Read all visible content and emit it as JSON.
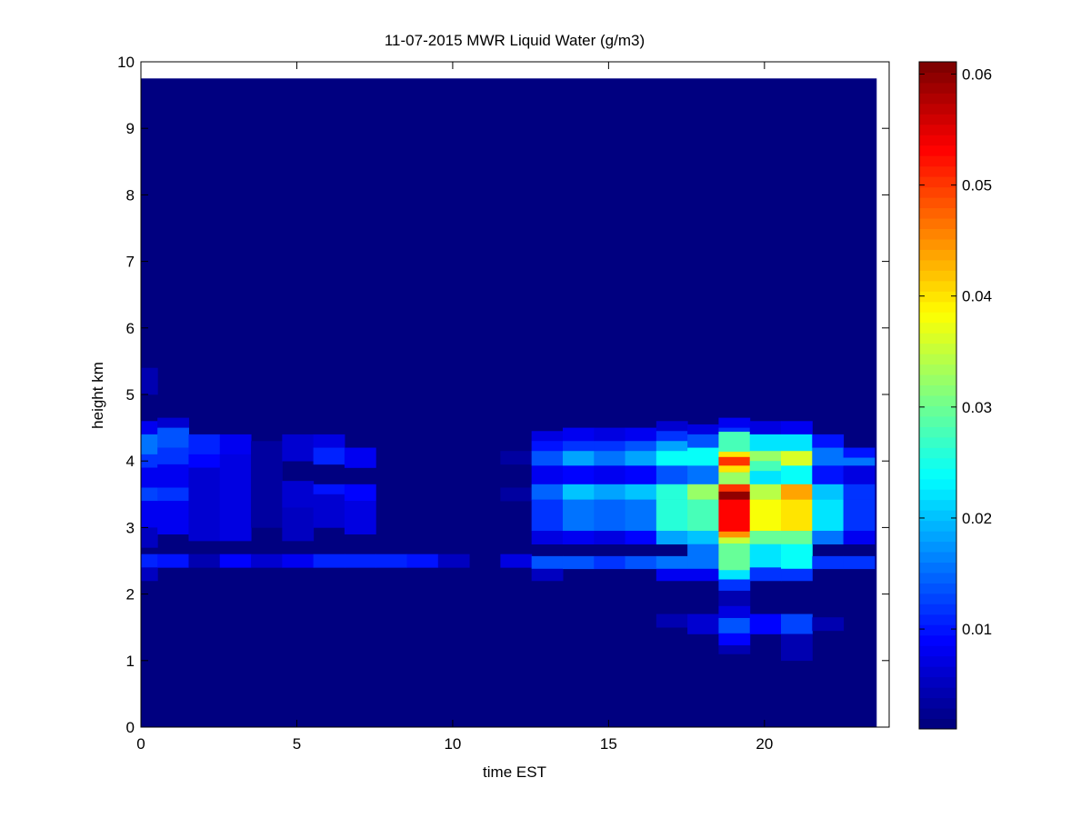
{
  "chart_data": {
    "type": "heatmap",
    "title": "11-07-2015 MWR Liquid Water (g/m3)",
    "xlabel": "time EST",
    "ylabel": "height km",
    "xlim": [
      0,
      24
    ],
    "ylim": [
      0,
      10
    ],
    "xticks": [
      "0",
      "5",
      "10",
      "15",
      "20"
    ],
    "yticks": [
      "0",
      "1",
      "2",
      "3",
      "4",
      "5",
      "6",
      "7",
      "8",
      "9",
      "10"
    ],
    "colorbar": {
      "colormap": "jet",
      "clim": [
        0.001,
        0.0611
      ],
      "ticks": [
        "0.01",
        "0.02",
        "0.03",
        "0.04",
        "0.05",
        "0.06"
      ]
    },
    "data_extent": {
      "time": [
        0,
        23.6
      ],
      "height": [
        0,
        9.75
      ]
    },
    "background_value": 0.001,
    "times": [
      0,
      1,
      2,
      3,
      4,
      5,
      6,
      7,
      8,
      9,
      10,
      11,
      12,
      13,
      14,
      15,
      16,
      17,
      18,
      19,
      20,
      21,
      22,
      23
    ],
    "cells_note": "per time column: [height_low_km, height_high_km, liquid_water_g_m3]",
    "columns": [
      [
        [
          5.0,
          5.4,
          0.004
        ],
        [
          4.4,
          4.6,
          0.008
        ],
        [
          4.1,
          4.4,
          0.016
        ],
        [
          3.9,
          4.1,
          0.012
        ],
        [
          3.6,
          3.9,
          0.008
        ],
        [
          3.4,
          3.6,
          0.013
        ],
        [
          3.0,
          3.4,
          0.008
        ],
        [
          2.7,
          3.0,
          0.005
        ],
        [
          2.4,
          2.6,
          0.011
        ],
        [
          2.2,
          2.4,
          0.005
        ]
      ],
      [
        [
          4.5,
          4.65,
          0.006
        ],
        [
          4.2,
          4.5,
          0.014
        ],
        [
          3.95,
          4.2,
          0.012
        ],
        [
          3.6,
          3.95,
          0.008
        ],
        [
          3.4,
          3.6,
          0.012
        ],
        [
          2.9,
          3.4,
          0.008
        ],
        [
          2.4,
          2.6,
          0.01
        ]
      ],
      [
        [
          4.1,
          4.4,
          0.011
        ],
        [
          3.9,
          4.1,
          0.009
        ],
        [
          3.3,
          3.9,
          0.006
        ],
        [
          2.8,
          3.3,
          0.006
        ],
        [
          2.4,
          2.6,
          0.004
        ]
      ],
      [
        [
          4.1,
          4.4,
          0.008
        ],
        [
          3.5,
          4.1,
          0.007
        ],
        [
          2.8,
          3.5,
          0.007
        ],
        [
          2.4,
          2.6,
          0.009
        ]
      ],
      [
        [
          3.0,
          4.3,
          0.003
        ],
        [
          2.4,
          2.6,
          0.006
        ]
      ],
      [
        [
          4.0,
          4.4,
          0.006
        ],
        [
          3.3,
          3.7,
          0.006
        ],
        [
          2.8,
          3.3,
          0.005
        ],
        [
          2.4,
          2.6,
          0.008
        ]
      ],
      [
        [
          4.2,
          4.4,
          0.007
        ],
        [
          3.95,
          4.2,
          0.011
        ],
        [
          3.5,
          3.65,
          0.01
        ],
        [
          3.0,
          3.5,
          0.006
        ],
        [
          2.4,
          2.6,
          0.011
        ]
      ],
      [
        [
          3.9,
          4.2,
          0.008
        ],
        [
          3.4,
          3.65,
          0.009
        ],
        [
          2.9,
          3.4,
          0.007
        ],
        [
          2.4,
          2.6,
          0.011
        ]
      ],
      [
        [
          2.4,
          2.6,
          0.011
        ]
      ],
      [
        [
          2.4,
          2.6,
          0.01
        ]
      ],
      [
        [
          2.4,
          2.6,
          0.005
        ]
      ],
      [],
      [
        [
          3.95,
          4.15,
          0.003
        ],
        [
          3.4,
          3.6,
          0.003
        ],
        [
          2.4,
          2.6,
          0.007
        ]
      ],
      [
        [
          4.3,
          4.45,
          0.007
        ],
        [
          4.15,
          4.3,
          0.01
        ],
        [
          3.93,
          4.15,
          0.014
        ],
        [
          3.65,
          3.93,
          0.008
        ],
        [
          3.42,
          3.65,
          0.015
        ],
        [
          2.95,
          3.42,
          0.012
        ],
        [
          2.75,
          2.95,
          0.007
        ],
        [
          2.38,
          2.57,
          0.014
        ],
        [
          2.2,
          2.38,
          0.005
        ]
      ],
      [
        [
          4.3,
          4.5,
          0.008
        ],
        [
          4.15,
          4.3,
          0.012
        ],
        [
          3.93,
          4.15,
          0.018
        ],
        [
          3.65,
          3.93,
          0.009
        ],
        [
          3.42,
          3.65,
          0.02
        ],
        [
          2.95,
          3.42,
          0.016
        ],
        [
          2.75,
          2.95,
          0.008
        ],
        [
          2.38,
          2.57,
          0.014
        ]
      ],
      [
        [
          4.3,
          4.5,
          0.007
        ],
        [
          4.15,
          4.3,
          0.012
        ],
        [
          3.93,
          4.15,
          0.016
        ],
        [
          3.65,
          3.93,
          0.008
        ],
        [
          3.42,
          3.65,
          0.018
        ],
        [
          2.95,
          3.42,
          0.015
        ],
        [
          2.75,
          2.95,
          0.007
        ],
        [
          2.38,
          2.57,
          0.012
        ]
      ],
      [
        [
          4.3,
          4.5,
          0.008
        ],
        [
          4.15,
          4.3,
          0.014
        ],
        [
          3.93,
          4.15,
          0.018
        ],
        [
          3.65,
          3.93,
          0.009
        ],
        [
          3.42,
          3.65,
          0.02
        ],
        [
          2.95,
          3.42,
          0.016
        ],
        [
          2.75,
          2.95,
          0.009
        ],
        [
          2.38,
          2.57,
          0.014
        ]
      ],
      [
        [
          4.45,
          4.6,
          0.006
        ],
        [
          4.3,
          4.45,
          0.012
        ],
        [
          4.15,
          4.3,
          0.018
        ],
        [
          3.93,
          4.15,
          0.024
        ],
        [
          3.65,
          3.93,
          0.014
        ],
        [
          3.42,
          3.65,
          0.026
        ],
        [
          2.95,
          3.42,
          0.026
        ],
        [
          2.75,
          2.95,
          0.018
        ],
        [
          2.38,
          2.57,
          0.016
        ],
        [
          2.2,
          2.38,
          0.008
        ],
        [
          1.5,
          1.7,
          0.004
        ]
      ],
      [
        [
          4.4,
          4.55,
          0.007
        ],
        [
          4.2,
          4.4,
          0.014
        ],
        [
          3.93,
          4.2,
          0.024
        ],
        [
          3.65,
          3.93,
          0.016
        ],
        [
          3.42,
          3.65,
          0.032
        ],
        [
          2.95,
          3.42,
          0.028
        ],
        [
          2.75,
          2.95,
          0.02
        ],
        [
          2.38,
          2.75,
          0.016
        ],
        [
          2.2,
          2.38,
          0.008
        ],
        [
          1.4,
          1.7,
          0.006
        ]
      ],
      [
        [
          4.5,
          4.65,
          0.008
        ],
        [
          4.44,
          4.5,
          0.012
        ],
        [
          4.14,
          4.44,
          0.028
        ],
        [
          4.06,
          4.14,
          0.04
        ],
        [
          3.93,
          4.06,
          0.05
        ],
        [
          3.83,
          3.93,
          0.04
        ],
        [
          3.65,
          3.83,
          0.032
        ],
        [
          3.54,
          3.65,
          0.05
        ],
        [
          3.42,
          3.54,
          0.06
        ],
        [
          2.94,
          3.42,
          0.053
        ],
        [
          2.85,
          2.94,
          0.045
        ],
        [
          2.76,
          2.85,
          0.035
        ],
        [
          2.36,
          2.76,
          0.03
        ],
        [
          2.22,
          2.36,
          0.022
        ],
        [
          2.05,
          2.22,
          0.012
        ],
        [
          1.82,
          2.05,
          0.004
        ],
        [
          1.64,
          1.82,
          0.007
        ],
        [
          1.41,
          1.64,
          0.014
        ],
        [
          1.23,
          1.41,
          0.009
        ],
        [
          1.1,
          1.23,
          0.004
        ]
      ],
      [
        [
          4.4,
          4.6,
          0.007
        ],
        [
          4.15,
          4.4,
          0.022
        ],
        [
          4.0,
          4.15,
          0.032
        ],
        [
          3.85,
          4.0,
          0.028
        ],
        [
          3.65,
          3.85,
          0.022
        ],
        [
          3.42,
          3.65,
          0.034
        ],
        [
          2.95,
          3.42,
          0.038
        ],
        [
          2.75,
          2.95,
          0.03
        ],
        [
          2.4,
          2.75,
          0.022
        ],
        [
          2.2,
          2.4,
          0.012
        ],
        [
          1.4,
          1.7,
          0.009
        ]
      ],
      [
        [
          4.4,
          4.6,
          0.008
        ],
        [
          4.15,
          4.4,
          0.022
        ],
        [
          3.93,
          4.15,
          0.036
        ],
        [
          3.65,
          3.93,
          0.024
        ],
        [
          3.42,
          3.65,
          0.044
        ],
        [
          2.95,
          3.42,
          0.04
        ],
        [
          2.75,
          2.95,
          0.03
        ],
        [
          2.38,
          2.75,
          0.024
        ],
        [
          2.2,
          2.38,
          0.012
        ],
        [
          1.4,
          1.7,
          0.013
        ],
        [
          1.0,
          1.4,
          0.004
        ]
      ],
      [
        [
          4.2,
          4.4,
          0.01
        ],
        [
          3.93,
          4.2,
          0.016
        ],
        [
          3.65,
          3.93,
          0.01
        ],
        [
          3.42,
          3.65,
          0.02
        ],
        [
          2.95,
          3.42,
          0.022
        ],
        [
          2.75,
          2.95,
          0.016
        ],
        [
          2.38,
          2.57,
          0.012
        ],
        [
          1.45,
          1.65,
          0.004
        ]
      ],
      [
        [
          4.05,
          4.2,
          0.01
        ],
        [
          3.93,
          4.05,
          0.016
        ],
        [
          3.65,
          3.93,
          0.007
        ],
        [
          3.42,
          3.65,
          0.012
        ],
        [
          2.95,
          3.42,
          0.012
        ],
        [
          2.75,
          2.95,
          0.008
        ],
        [
          2.38,
          2.57,
          0.012
        ]
      ]
    ]
  }
}
